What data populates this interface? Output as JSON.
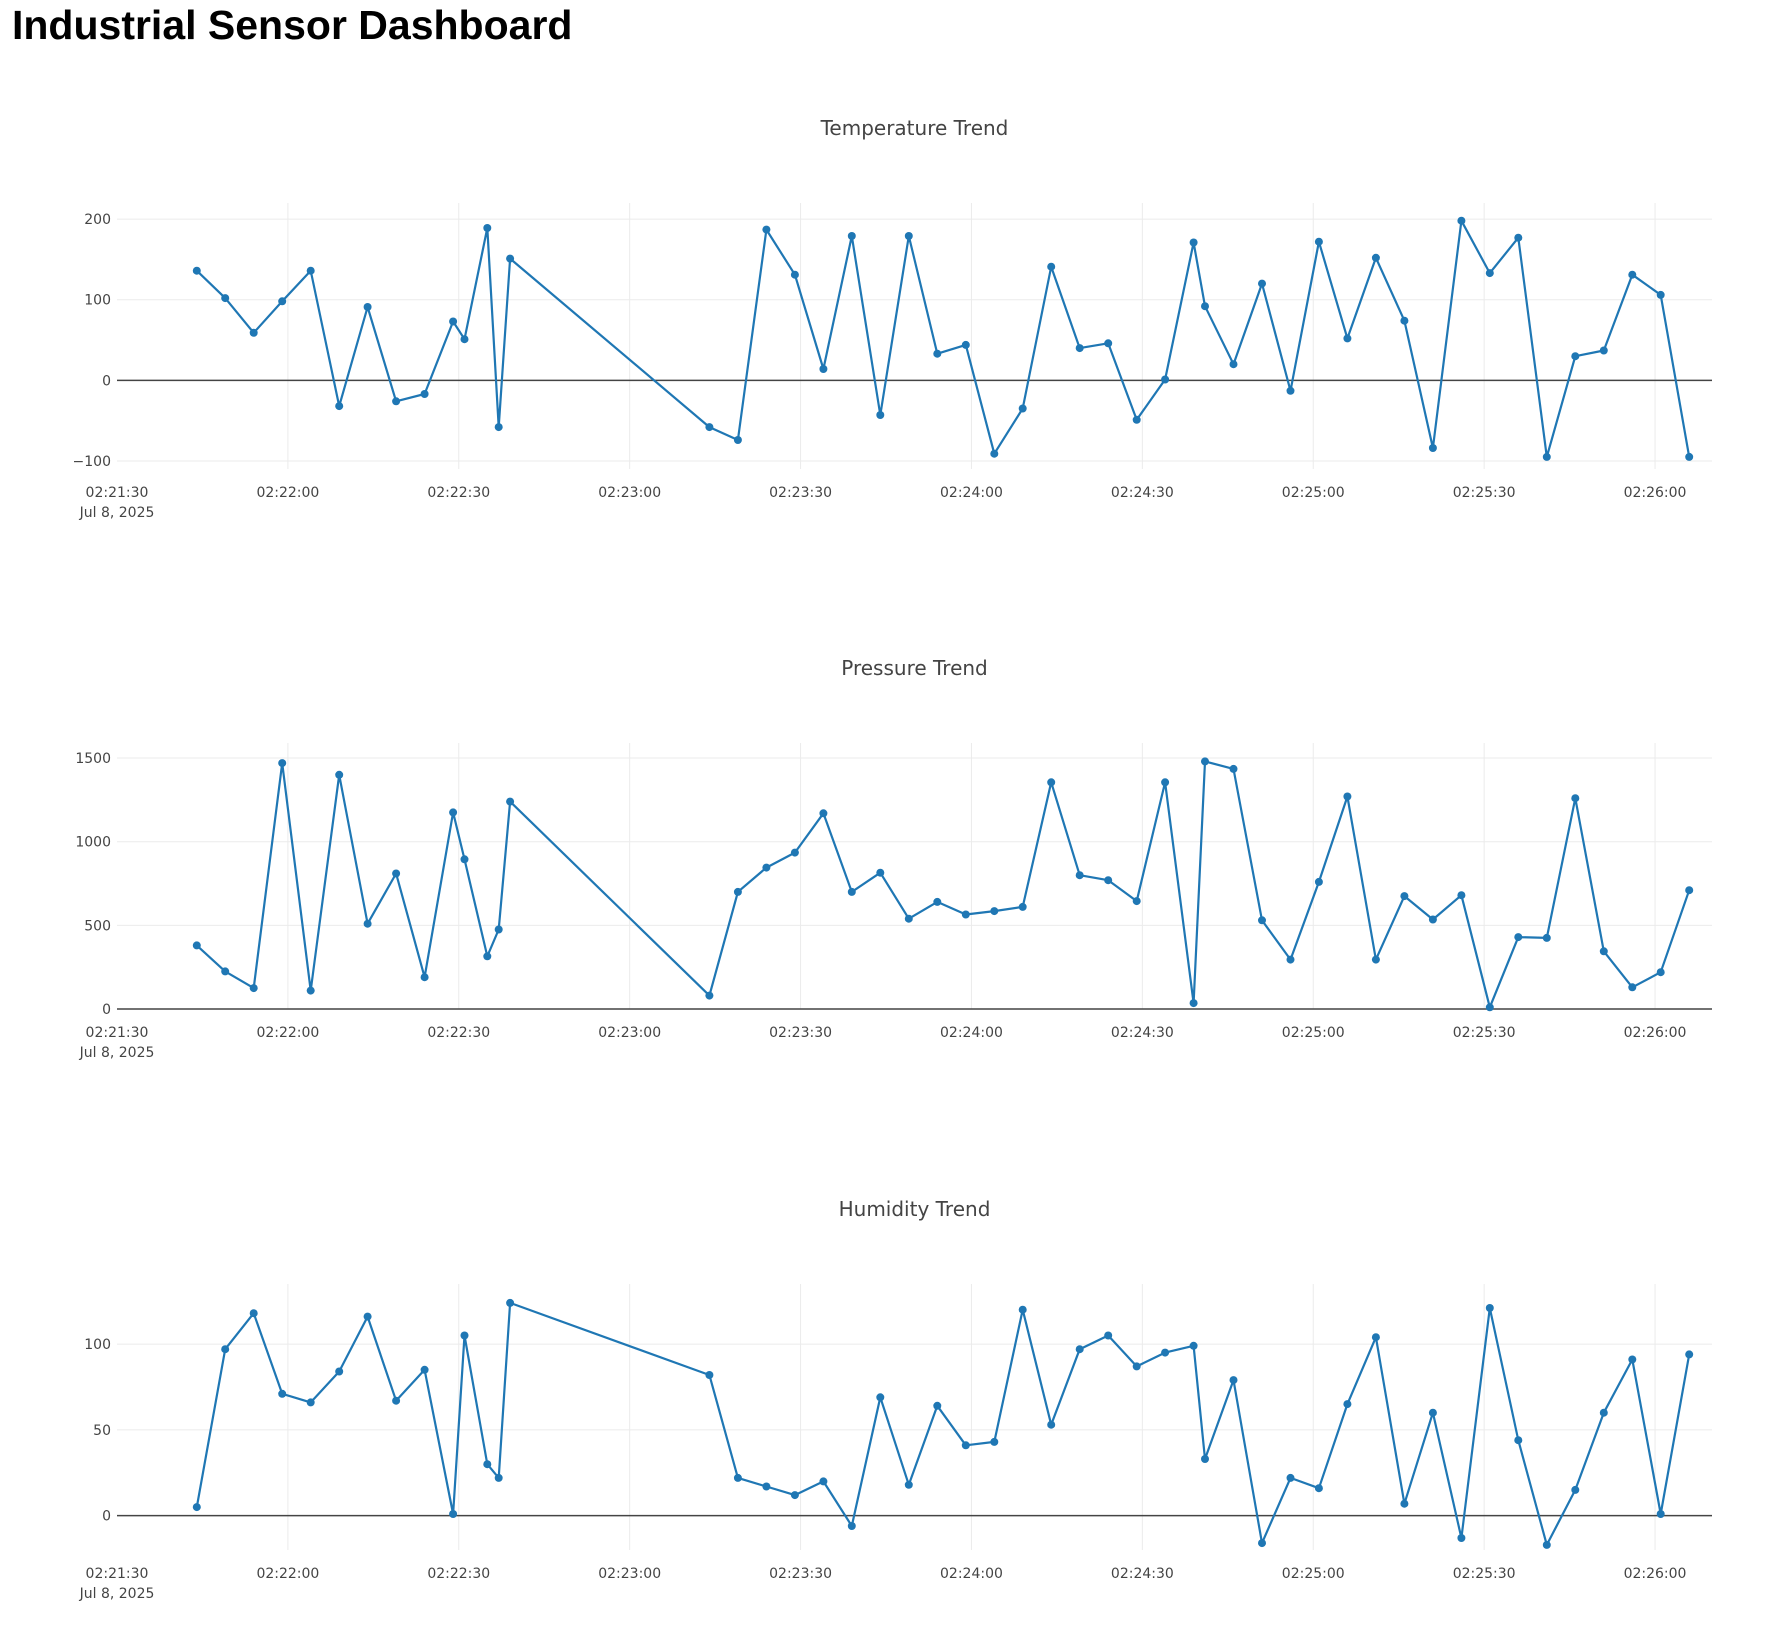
{
  "title": "Industrial Sensor Dashboard",
  "colors": {
    "series": "#1f77b4",
    "grid": "#ebebeb",
    "zero": "#444444",
    "text": "#444444"
  },
  "chart_data": [
    {
      "id": "temperature",
      "type": "line",
      "title": "Temperature Trend",
      "xlabel": "",
      "ylabel": "",
      "x_date": "Jul 8, 2025",
      "xlim": [
        "02:21:30",
        "02:26:10"
      ],
      "ylim": [
        -110,
        220
      ],
      "xticks": [
        "02:21:30",
        "02:22:00",
        "02:22:30",
        "02:23:00",
        "02:23:30",
        "02:24:00",
        "02:24:30",
        "02:25:00",
        "02:25:30",
        "02:26:00"
      ],
      "yticks": [
        -100,
        0,
        100,
        200
      ],
      "grid": true,
      "markers": true,
      "series": [
        {
          "x": [
            "02:21:44",
            "02:21:49",
            "02:21:54",
            "02:21:59",
            "02:22:04",
            "02:22:09",
            "02:22:14",
            "02:22:19",
            "02:22:24",
            "02:22:29",
            "02:22:31",
            "02:22:35",
            "02:22:37",
            "02:22:39",
            "02:23:14",
            "02:23:19",
            "02:23:24",
            "02:23:29",
            "02:23:34",
            "02:23:39",
            "02:23:44",
            "02:23:49",
            "02:23:54",
            "02:23:59",
            "02:24:04",
            "02:24:09",
            "02:24:14",
            "02:24:19",
            "02:24:24",
            "02:24:29",
            "02:24:34",
            "02:24:39",
            "02:24:41",
            "02:24:46",
            "02:24:51",
            "02:24:56",
            "02:25:01",
            "02:25:06",
            "02:25:11",
            "02:25:16",
            "02:25:21",
            "02:25:26",
            "02:25:31",
            "02:25:36",
            "02:25:41",
            "02:25:46",
            "02:25:51",
            "02:25:56",
            "02:26:01",
            "02:26:06"
          ],
          "y": [
            136,
            102,
            59,
            98,
            136,
            -32,
            91,
            -26,
            -17,
            73,
            51,
            189,
            -58,
            151,
            -58,
            -74,
            187,
            131,
            14,
            179,
            -43,
            179,
            33,
            44,
            -91,
            -35,
            141,
            40,
            46,
            -49,
            1,
            171,
            92,
            20,
            120,
            -13,
            172,
            52,
            152,
            74,
            -84,
            198,
            133,
            177,
            -95,
            30,
            37,
            131,
            106,
            -95
          ]
        }
      ]
    },
    {
      "id": "pressure",
      "type": "line",
      "title": "Pressure Trend",
      "xlabel": "",
      "ylabel": "",
      "x_date": "Jul 8, 2025",
      "xlim": [
        "02:21:30",
        "02:26:10"
      ],
      "ylim": [
        0,
        1590
      ],
      "xticks": [
        "02:21:30",
        "02:22:00",
        "02:22:30",
        "02:23:00",
        "02:23:30",
        "02:24:00",
        "02:24:30",
        "02:25:00",
        "02:25:30",
        "02:26:00"
      ],
      "yticks": [
        0,
        500,
        1000,
        1500
      ],
      "grid": true,
      "markers": true,
      "series": [
        {
          "x": [
            "02:21:44",
            "02:21:49",
            "02:21:54",
            "02:21:59",
            "02:22:04",
            "02:22:09",
            "02:22:14",
            "02:22:19",
            "02:22:24",
            "02:22:29",
            "02:22:31",
            "02:22:35",
            "02:22:37",
            "02:22:39",
            "02:23:14",
            "02:23:19",
            "02:23:24",
            "02:23:29",
            "02:23:34",
            "02:23:39",
            "02:23:44",
            "02:23:49",
            "02:23:54",
            "02:23:59",
            "02:24:04",
            "02:24:09",
            "02:24:14",
            "02:24:19",
            "02:24:24",
            "02:24:29",
            "02:24:34",
            "02:24:39",
            "02:24:41",
            "02:24:46",
            "02:24:51",
            "02:24:56",
            "02:25:01",
            "02:25:06",
            "02:25:11",
            "02:25:16",
            "02:25:21",
            "02:25:26",
            "02:25:31",
            "02:25:36",
            "02:25:41",
            "02:25:46",
            "02:25:51",
            "02:25:56",
            "02:26:01",
            "02:26:06"
          ],
          "y": [
            380,
            225,
            125,
            1470,
            110,
            1400,
            510,
            810,
            190,
            1175,
            895,
            315,
            475,
            1240,
            80,
            700,
            845,
            935,
            1170,
            700,
            815,
            540,
            640,
            565,
            585,
            610,
            1355,
            800,
            770,
            645,
            1355,
            35,
            1480,
            1435,
            530,
            295,
            760,
            1270,
            295,
            675,
            535,
            680,
            10,
            430,
            425,
            1260,
            345,
            130,
            220,
            710
          ]
        }
      ]
    },
    {
      "id": "humidity",
      "type": "line",
      "title": "Humidity Trend",
      "xlabel": "",
      "ylabel": "",
      "x_date": "Jul 8, 2025",
      "xlim": [
        "02:21:30",
        "02:26:10"
      ],
      "ylim": [
        -20,
        135
      ],
      "xticks": [
        "02:21:30",
        "02:22:00",
        "02:22:30",
        "02:23:00",
        "02:23:30",
        "02:24:00",
        "02:24:30",
        "02:25:00",
        "02:25:30",
        "02:26:00"
      ],
      "yticks": [
        0,
        50,
        100
      ],
      "grid": true,
      "markers": true,
      "series": [
        {
          "x": [
            "02:21:44",
            "02:21:49",
            "02:21:54",
            "02:21:59",
            "02:22:04",
            "02:22:09",
            "02:22:14",
            "02:22:19",
            "02:22:24",
            "02:22:29",
            "02:22:31",
            "02:22:35",
            "02:22:37",
            "02:22:39",
            "02:23:14",
            "02:23:19",
            "02:23:24",
            "02:23:29",
            "02:23:34",
            "02:23:39",
            "02:23:44",
            "02:23:49",
            "02:23:54",
            "02:23:59",
            "02:24:04",
            "02:24:09",
            "02:24:14",
            "02:24:19",
            "02:24:24",
            "02:24:29",
            "02:24:34",
            "02:24:39",
            "02:24:41",
            "02:24:46",
            "02:24:51",
            "02:24:56",
            "02:25:01",
            "02:25:06",
            "02:25:11",
            "02:25:16",
            "02:25:21",
            "02:25:26",
            "02:25:31",
            "02:25:36",
            "02:25:41",
            "02:25:46",
            "02:25:51",
            "02:25:56",
            "02:26:01",
            "02:26:06"
          ],
          "y": [
            5,
            97,
            118,
            71,
            66,
            84,
            116,
            67,
            85,
            1,
            105,
            30,
            22,
            124,
            82,
            22,
            17,
            12,
            20,
            -6,
            69,
            18,
            64,
            41,
            43,
            120,
            53,
            97,
            105,
            87,
            95,
            99,
            33,
            79,
            -16,
            22,
            16,
            65,
            104,
            7,
            60,
            -13,
            121,
            44,
            -17,
            15,
            60,
            91,
            1,
            94
          ]
        }
      ]
    }
  ]
}
